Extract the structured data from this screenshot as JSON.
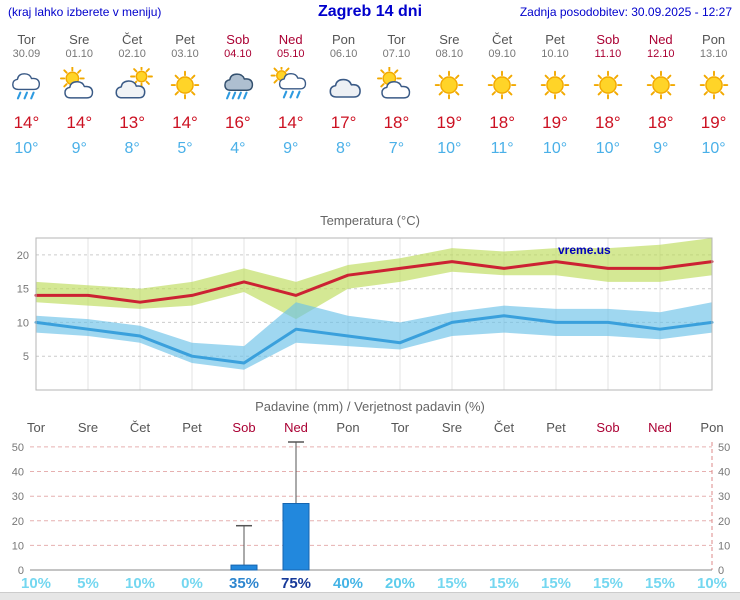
{
  "header": {
    "left_note": "(kraj lahko izberete v meniju)",
    "title": "Zagreb 14 dni",
    "updated": "Zadnja posodobitev: 30.09.2025 - 12:27"
  },
  "colors": {
    "header_blue": "#0000cc",
    "high_temp": "#cc1122",
    "low_temp": "#4ab0e8",
    "weekend": "#aa0033",
    "weekday": "#555555",
    "title_gray": "#666666"
  },
  "days": [
    {
      "name": "Tor",
      "date": "30.09",
      "weekend": false,
      "icon": "rain",
      "high": "14°",
      "low": "10°"
    },
    {
      "name": "Sre",
      "date": "01.10",
      "weekend": false,
      "icon": "sun-cloud",
      "high": "14°",
      "low": "9°"
    },
    {
      "name": "Čet",
      "date": "02.10",
      "weekend": false,
      "icon": "mostly-cloudy",
      "high": "13°",
      "low": "8°"
    },
    {
      "name": "Pet",
      "date": "03.10",
      "weekend": false,
      "icon": "sun",
      "high": "14°",
      "low": "5°"
    },
    {
      "name": "Sob",
      "date": "04.10",
      "weekend": true,
      "icon": "heavy-rain",
      "high": "16°",
      "low": "4°"
    },
    {
      "name": "Ned",
      "date": "05.10",
      "weekend": true,
      "icon": "rain-sun",
      "high": "14°",
      "low": "9°"
    },
    {
      "name": "Pon",
      "date": "06.10",
      "weekend": false,
      "icon": "cloud",
      "high": "17°",
      "low": "8°"
    },
    {
      "name": "Tor",
      "date": "07.10",
      "weekend": false,
      "icon": "sun-cloud",
      "high": "18°",
      "low": "7°"
    },
    {
      "name": "Sre",
      "date": "08.10",
      "weekend": false,
      "icon": "sun",
      "high": "19°",
      "low": "10°"
    },
    {
      "name": "Čet",
      "date": "09.10",
      "weekend": false,
      "icon": "sun",
      "high": "18°",
      "low": "11°"
    },
    {
      "name": "Pet",
      "date": "10.10",
      "weekend": false,
      "icon": "sun",
      "high": "19°",
      "low": "10°"
    },
    {
      "name": "Sob",
      "date": "11.10",
      "weekend": true,
      "icon": "sun",
      "high": "18°",
      "low": "10°"
    },
    {
      "name": "Ned",
      "date": "12.10",
      "weekend": true,
      "icon": "sun",
      "high": "18°",
      "low": "9°"
    },
    {
      "name": "Pon",
      "date": "13.10",
      "weekend": false,
      "icon": "sun",
      "high": "19°",
      "low": "10°"
    }
  ],
  "chart_data": [
    {
      "type": "line",
      "title": "Temperatura (°C)",
      "watermark": "vreme.us",
      "categories": [
        "Tor",
        "Sre",
        "Čet",
        "Pet",
        "Sob",
        "Ned",
        "Pon",
        "Tor",
        "Sre",
        "Čet",
        "Pet",
        "Sob",
        "Ned",
        "Pon"
      ],
      "ylim": [
        0,
        22.5
      ],
      "yticks": [
        5,
        10,
        15,
        20
      ],
      "grid": true,
      "series": [
        {
          "name": "max-temperature",
          "color": "#cc2233",
          "values": [
            14,
            14,
            13,
            14,
            16,
            14,
            17,
            18,
            19,
            18,
            19,
            18,
            18,
            19
          ]
        },
        {
          "name": "min-temperature",
          "color": "#3aa0dc",
          "values": [
            10,
            9,
            8,
            5,
            4,
            9,
            8,
            7,
            10,
            11,
            10,
            10,
            9,
            10
          ]
        }
      ],
      "bands": [
        {
          "name": "max-range",
          "color": "rgba(189,219,91,0.65)",
          "upper": [
            16,
            15.5,
            15,
            16,
            18,
            16,
            18.5,
            19.5,
            21,
            20.5,
            21,
            21,
            21.5,
            22.5
          ],
          "lower": [
            13,
            12.5,
            12,
            12.5,
            14.5,
            10.5,
            15,
            16,
            17.5,
            17,
            17,
            16,
            16,
            17
          ]
        },
        {
          "name": "min-range",
          "color": "rgba(108,193,232,0.65)",
          "upper": [
            11,
            10.5,
            9.5,
            7,
            6.5,
            13,
            11,
            10,
            11.5,
            12.5,
            12,
            12,
            11.5,
            13
          ],
          "lower": [
            8.5,
            8,
            7,
            4,
            3,
            7,
            6.5,
            6,
            8,
            8.5,
            8,
            8,
            7.5,
            8.5
          ]
        }
      ]
    },
    {
      "type": "bar",
      "title": "Padavine (mm) / Verjetnost padavin (%)",
      "categories": [
        "Tor",
        "Sre",
        "Čet",
        "Pet",
        "Sob",
        "Ned",
        "Pon",
        "Tor",
        "Sre",
        "Čet",
        "Pet",
        "Sob",
        "Ned",
        "Pon"
      ],
      "ylim": [
        0,
        52
      ],
      "yticks": [
        0,
        10,
        20,
        30,
        40,
        50
      ],
      "bar_color": "#2288dd",
      "values": [
        0,
        0,
        0,
        0,
        2,
        27,
        0,
        0,
        0,
        0,
        0,
        0,
        0,
        0
      ],
      "whisker_max": [
        0,
        0,
        0,
        0,
        18,
        52,
        0,
        0,
        0,
        0,
        0,
        0,
        0,
        0
      ],
      "probabilities": [
        {
          "label": "10%",
          "color": "#74d7f0"
        },
        {
          "label": "5%",
          "color": "#74d7f0"
        },
        {
          "label": "10%",
          "color": "#74d7f0"
        },
        {
          "label": "0%",
          "color": "#74d7f0"
        },
        {
          "label": "35%",
          "color": "#2e86cf"
        },
        {
          "label": "75%",
          "color": "#173a99"
        },
        {
          "label": "40%",
          "color": "#45b4e6"
        },
        {
          "label": "20%",
          "color": "#5ecdec"
        },
        {
          "label": "15%",
          "color": "#74d7f0"
        },
        {
          "label": "15%",
          "color": "#74d7f0"
        },
        {
          "label": "15%",
          "color": "#74d7f0"
        },
        {
          "label": "15%",
          "color": "#74d7f0"
        },
        {
          "label": "15%",
          "color": "#74d7f0"
        },
        {
          "label": "10%",
          "color": "#74d7f0"
        }
      ]
    }
  ]
}
